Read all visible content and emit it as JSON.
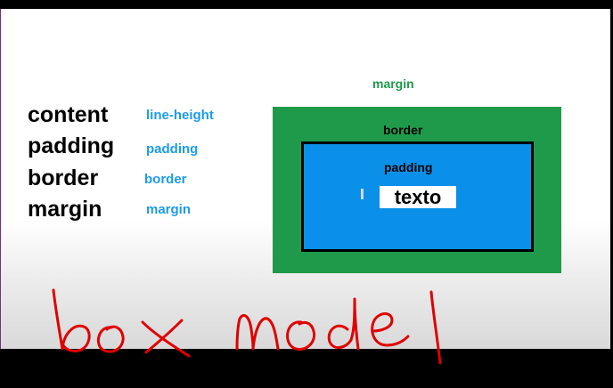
{
  "terms": [
    "content",
    "padding",
    "border",
    "margin"
  ],
  "css_properties": [
    "line-height",
    "padding",
    "border",
    "margin"
  ],
  "diagram": {
    "margin_label": "margin",
    "border_label": "border",
    "padding_label": "padding",
    "content_label": "texto"
  },
  "annotation": "box model",
  "colors": {
    "margin_green": "#1f9a4a",
    "padding_blue": "#0a90e8",
    "property_blue": "#1e9be8",
    "ink_red": "#e00000"
  }
}
